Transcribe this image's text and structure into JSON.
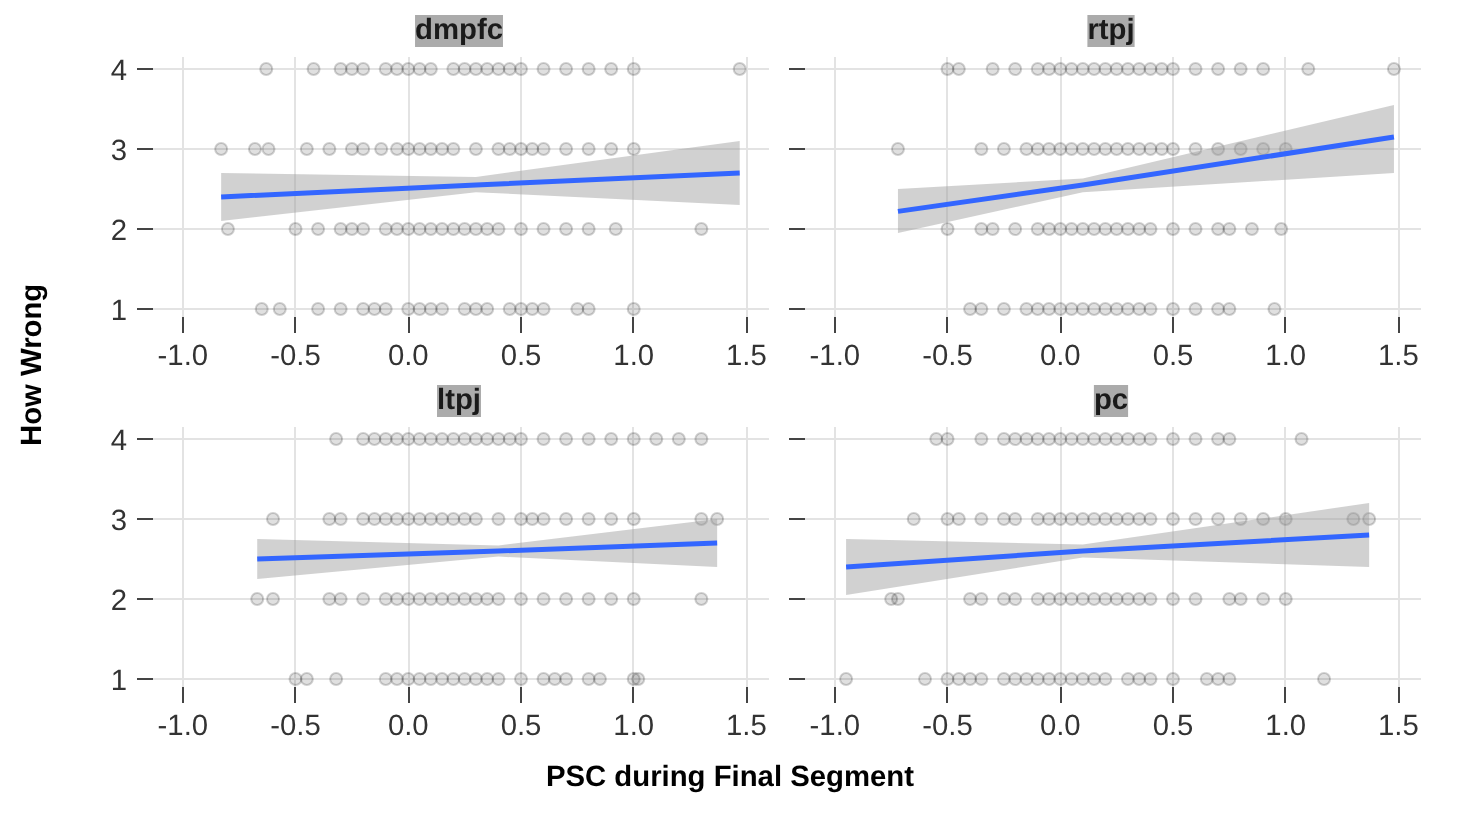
{
  "chart_data": [
    {
      "type": "scatter",
      "title": "dmpfc",
      "ylabel": "How Wrong",
      "xlim": [
        -1.15,
        1.6
      ],
      "ylim": [
        0.85,
        4.15
      ],
      "xticks": [
        {
          "value": -1,
          "label": "-1.0"
        },
        -0.5,
        {
          "value": 0,
          "label": "0.0"
        },
        0.5,
        {
          "value": 1,
          "label": "1.0"
        },
        1.5
      ],
      "yticks": [
        1,
        2,
        3,
        4
      ],
      "grid": true,
      "marker": "circle",
      "tick_labels": "xy",
      "series": [
        {
          "color": "#000000",
          "x": [
            -0.63,
            -0.42,
            -0.3,
            -0.25,
            -0.2,
            -0.1,
            -0.05,
            0.0,
            0.05,
            0.1,
            0.2,
            0.25,
            0.3,
            0.35,
            0.4,
            0.45,
            0.5,
            0.6,
            0.7,
            0.8,
            0.9,
            1.0,
            1.47,
            -0.83,
            -0.68,
            -0.62,
            -0.45,
            -0.35,
            -0.25,
            -0.2,
            -0.12,
            -0.05,
            0.0,
            0.05,
            0.1,
            0.15,
            0.2,
            0.3,
            0.4,
            0.45,
            0.5,
            0.55,
            0.6,
            0.7,
            0.8,
            0.9,
            1.0,
            -0.8,
            -0.5,
            -0.4,
            -0.3,
            -0.25,
            -0.2,
            -0.1,
            -0.05,
            0.0,
            0.05,
            0.1,
            0.15,
            0.2,
            0.25,
            0.3,
            0.35,
            0.4,
            0.5,
            0.6,
            0.7,
            0.8,
            0.92,
            1.3,
            -0.65,
            -0.57,
            -0.4,
            -0.3,
            -0.2,
            -0.15,
            -0.1,
            0.0,
            0.05,
            0.1,
            0.15,
            0.25,
            0.3,
            0.35,
            0.45,
            0.5,
            0.55,
            0.6,
            0.75,
            0.8,
            1.0
          ],
          "values": [
            4,
            4,
            4,
            4,
            4,
            4,
            4,
            4,
            4,
            4,
            4,
            4,
            4,
            4,
            4,
            4,
            4,
            4,
            4,
            4,
            4,
            4,
            4,
            3,
            3,
            3,
            3,
            3,
            3,
            3,
            3,
            3,
            3,
            3,
            3,
            3,
            3,
            3,
            3,
            3,
            3,
            3,
            3,
            3,
            3,
            3,
            3,
            2,
            2,
            2,
            2,
            2,
            2,
            2,
            2,
            2,
            2,
            2,
            2,
            2,
            2,
            2,
            2,
            2,
            2,
            2,
            2,
            2,
            2,
            2,
            1,
            1,
            1,
            1,
            1,
            1,
            1,
            1,
            1,
            1,
            1,
            1,
            1,
            1,
            1,
            1,
            1,
            1,
            1,
            1,
            1
          ]
        },
        {
          "type": "line",
          "marker": "none",
          "color": "#3366ff",
          "x": [
            -0.83,
            0.3,
            1.47
          ],
          "values": [
            2.4,
            2.55,
            2.7
          ],
          "lower": [
            2.1,
            2.46,
            2.3
          ],
          "upper": [
            2.7,
            2.65,
            3.1
          ]
        }
      ]
    },
    {
      "type": "scatter",
      "title": "rtpj",
      "xlim": [
        -1.15,
        1.6
      ],
      "ylim": [
        0.85,
        4.15
      ],
      "xticks": [
        {
          "value": -1,
          "label": "-1.0"
        },
        -0.5,
        {
          "value": 0,
          "label": "0.0"
        },
        0.5,
        {
          "value": 1,
          "label": "1.0"
        },
        1.5
      ],
      "yticks": [
        1,
        2,
        3,
        4
      ],
      "grid": true,
      "marker": "circle",
      "tick_labels": "x",
      "series": [
        {
          "color": "#000000",
          "x": [
            -0.5,
            -0.45,
            -0.3,
            -0.2,
            -0.1,
            -0.05,
            0.0,
            0.05,
            0.1,
            0.15,
            0.2,
            0.25,
            0.3,
            0.35,
            0.4,
            0.45,
            0.5,
            0.6,
            0.7,
            0.8,
            0.9,
            1.1,
            1.48,
            -0.72,
            -0.35,
            -0.25,
            -0.15,
            -0.1,
            -0.05,
            0.0,
            0.05,
            0.1,
            0.15,
            0.2,
            0.25,
            0.3,
            0.35,
            0.4,
            0.45,
            0.5,
            0.6,
            0.7,
            0.8,
            0.9,
            1.0,
            -0.5,
            -0.35,
            -0.3,
            -0.2,
            -0.1,
            -0.05,
            0.0,
            0.05,
            0.1,
            0.15,
            0.2,
            0.25,
            0.3,
            0.35,
            0.4,
            0.5,
            0.6,
            0.7,
            0.75,
            0.85,
            0.98,
            -0.4,
            -0.35,
            -0.25,
            -0.15,
            -0.1,
            -0.05,
            0.0,
            0.05,
            0.1,
            0.15,
            0.2,
            0.25,
            0.3,
            0.35,
            0.4,
            0.5,
            0.6,
            0.7,
            0.75,
            0.95
          ],
          "values": [
            4,
            4,
            4,
            4,
            4,
            4,
            4,
            4,
            4,
            4,
            4,
            4,
            4,
            4,
            4,
            4,
            4,
            4,
            4,
            4,
            4,
            4,
            4,
            3,
            3,
            3,
            3,
            3,
            3,
            3,
            3,
            3,
            3,
            3,
            3,
            3,
            3,
            3,
            3,
            3,
            3,
            3,
            3,
            3,
            3,
            2,
            2,
            2,
            2,
            2,
            2,
            2,
            2,
            2,
            2,
            2,
            2,
            2,
            2,
            2,
            2,
            2,
            2,
            2,
            2,
            2,
            1,
            1,
            1,
            1,
            1,
            1,
            1,
            1,
            1,
            1,
            1,
            1,
            1,
            1,
            1,
            1,
            1,
            1,
            1,
            1
          ]
        },
        {
          "type": "line",
          "marker": "none",
          "color": "#3366ff",
          "x": [
            -0.72,
            0.1,
            1.48
          ],
          "values": [
            2.22,
            2.55,
            3.15
          ],
          "lower": [
            1.95,
            2.46,
            2.7
          ],
          "upper": [
            2.5,
            2.63,
            3.55
          ]
        }
      ]
    },
    {
      "type": "scatter",
      "title": "ltpj",
      "xlabel": "PSC during Final Segment",
      "xlim": [
        -1.15,
        1.6
      ],
      "ylim": [
        0.85,
        4.15
      ],
      "xticks": [
        {
          "value": -1,
          "label": "-1.0"
        },
        -0.5,
        {
          "value": 0,
          "label": "0.0"
        },
        0.5,
        {
          "value": 1,
          "label": "1.0"
        },
        1.5
      ],
      "yticks": [
        1,
        2,
        3,
        4
      ],
      "grid": true,
      "marker": "circle",
      "tick_labels": "xy",
      "series": [
        {
          "color": "#000000",
          "x": [
            -0.32,
            -0.2,
            -0.15,
            -0.1,
            -0.05,
            0.0,
            0.05,
            0.1,
            0.15,
            0.2,
            0.25,
            0.3,
            0.35,
            0.4,
            0.45,
            0.5,
            0.6,
            0.7,
            0.8,
            0.9,
            1.0,
            1.1,
            1.2,
            1.3,
            -0.6,
            -0.35,
            -0.3,
            -0.2,
            -0.15,
            -0.1,
            -0.05,
            0.0,
            0.05,
            0.1,
            0.15,
            0.2,
            0.25,
            0.3,
            0.4,
            0.5,
            0.55,
            0.6,
            0.7,
            0.8,
            0.9,
            1.0,
            1.3,
            1.37,
            -0.67,
            -0.6,
            -0.35,
            -0.3,
            -0.2,
            -0.1,
            -0.05,
            0.0,
            0.05,
            0.1,
            0.15,
            0.2,
            0.25,
            0.3,
            0.35,
            0.4,
            0.5,
            0.6,
            0.7,
            0.8,
            0.9,
            1.0,
            1.3,
            -0.5,
            -0.45,
            -0.32,
            -0.1,
            -0.05,
            0.0,
            0.05,
            0.1,
            0.15,
            0.2,
            0.25,
            0.3,
            0.35,
            0.4,
            0.5,
            0.6,
            0.65,
            0.7,
            0.8,
            0.85,
            1.0,
            1.02
          ],
          "values": [
            4,
            4,
            4,
            4,
            4,
            4,
            4,
            4,
            4,
            4,
            4,
            4,
            4,
            4,
            4,
            4,
            4,
            4,
            4,
            4,
            4,
            4,
            4,
            4,
            3,
            3,
            3,
            3,
            3,
            3,
            3,
            3,
            3,
            3,
            3,
            3,
            3,
            3,
            3,
            3,
            3,
            3,
            3,
            3,
            3,
            3,
            3,
            3,
            2,
            2,
            2,
            2,
            2,
            2,
            2,
            2,
            2,
            2,
            2,
            2,
            2,
            2,
            2,
            2,
            2,
            2,
            2,
            2,
            2,
            2,
            2,
            1,
            1,
            1,
            1,
            1,
            1,
            1,
            1,
            1,
            1,
            1,
            1,
            1,
            1,
            1,
            1,
            1,
            1,
            1,
            1,
            1,
            1
          ]
        },
        {
          "type": "line",
          "marker": "none",
          "color": "#3366ff",
          "x": [
            -0.67,
            0.4,
            1.37
          ],
          "values": [
            2.5,
            2.6,
            2.7
          ],
          "lower": [
            2.25,
            2.53,
            2.4
          ],
          "upper": [
            2.75,
            2.67,
            3.0
          ]
        }
      ]
    },
    {
      "type": "scatter",
      "title": "pc",
      "xlim": [
        -1.15,
        1.6
      ],
      "ylim": [
        0.85,
        4.15
      ],
      "xticks": [
        {
          "value": -1,
          "label": "-1.0"
        },
        -0.5,
        {
          "value": 0,
          "label": "0.0"
        },
        0.5,
        {
          "value": 1,
          "label": "1.0"
        },
        1.5
      ],
      "yticks": [
        1,
        2,
        3,
        4
      ],
      "grid": true,
      "marker": "circle",
      "tick_labels": "x",
      "series": [
        {
          "color": "#000000",
          "x": [
            -0.55,
            -0.5,
            -0.35,
            -0.25,
            -0.2,
            -0.15,
            -0.1,
            -0.05,
            0.0,
            0.05,
            0.1,
            0.15,
            0.2,
            0.25,
            0.3,
            0.35,
            0.4,
            0.5,
            0.6,
            0.7,
            0.75,
            1.07,
            -0.65,
            -0.5,
            -0.45,
            -0.35,
            -0.25,
            -0.2,
            -0.1,
            -0.05,
            0.0,
            0.05,
            0.1,
            0.15,
            0.2,
            0.25,
            0.3,
            0.35,
            0.4,
            0.5,
            0.6,
            0.7,
            0.8,
            0.9,
            1.0,
            1.3,
            1.37,
            -0.75,
            -0.72,
            -0.4,
            -0.35,
            -0.25,
            -0.2,
            -0.1,
            -0.05,
            0.0,
            0.05,
            0.1,
            0.15,
            0.2,
            0.25,
            0.3,
            0.35,
            0.4,
            0.5,
            0.6,
            0.75,
            0.8,
            0.9,
            1.0,
            1.17,
            -0.95,
            -0.6,
            -0.5,
            -0.45,
            -0.4,
            -0.35,
            -0.25,
            -0.2,
            -0.15,
            -0.1,
            -0.05,
            0.0,
            0.05,
            0.1,
            0.15,
            0.2,
            0.3,
            0.35,
            0.4,
            0.5,
            0.65,
            0.7,
            0.75
          ],
          "values": [
            4,
            4,
            4,
            4,
            4,
            4,
            4,
            4,
            4,
            4,
            4,
            4,
            4,
            4,
            4,
            4,
            4,
            4,
            4,
            4,
            4,
            4,
            3,
            3,
            3,
            3,
            3,
            3,
            3,
            3,
            3,
            3,
            3,
            3,
            3,
            3,
            3,
            3,
            3,
            3,
            3,
            3,
            3,
            3,
            3,
            3,
            3,
            2,
            2,
            2,
            2,
            2,
            2,
            2,
            2,
            2,
            2,
            2,
            2,
            2,
            2,
            2,
            2,
            2,
            2,
            2,
            2,
            2,
            2,
            2,
            1,
            1,
            1,
            1,
            1,
            1,
            1,
            1,
            1,
            1,
            1,
            1,
            1,
            1,
            1,
            1,
            1,
            1,
            1,
            1,
            1,
            1,
            1,
            1
          ]
        },
        {
          "type": "line",
          "marker": "none",
          "color": "#3366ff",
          "x": [
            -0.95,
            0.1,
            1.37
          ],
          "values": [
            2.4,
            2.6,
            2.8
          ],
          "lower": [
            2.05,
            2.52,
            2.4
          ],
          "upper": [
            2.75,
            2.68,
            3.2
          ]
        }
      ]
    }
  ]
}
